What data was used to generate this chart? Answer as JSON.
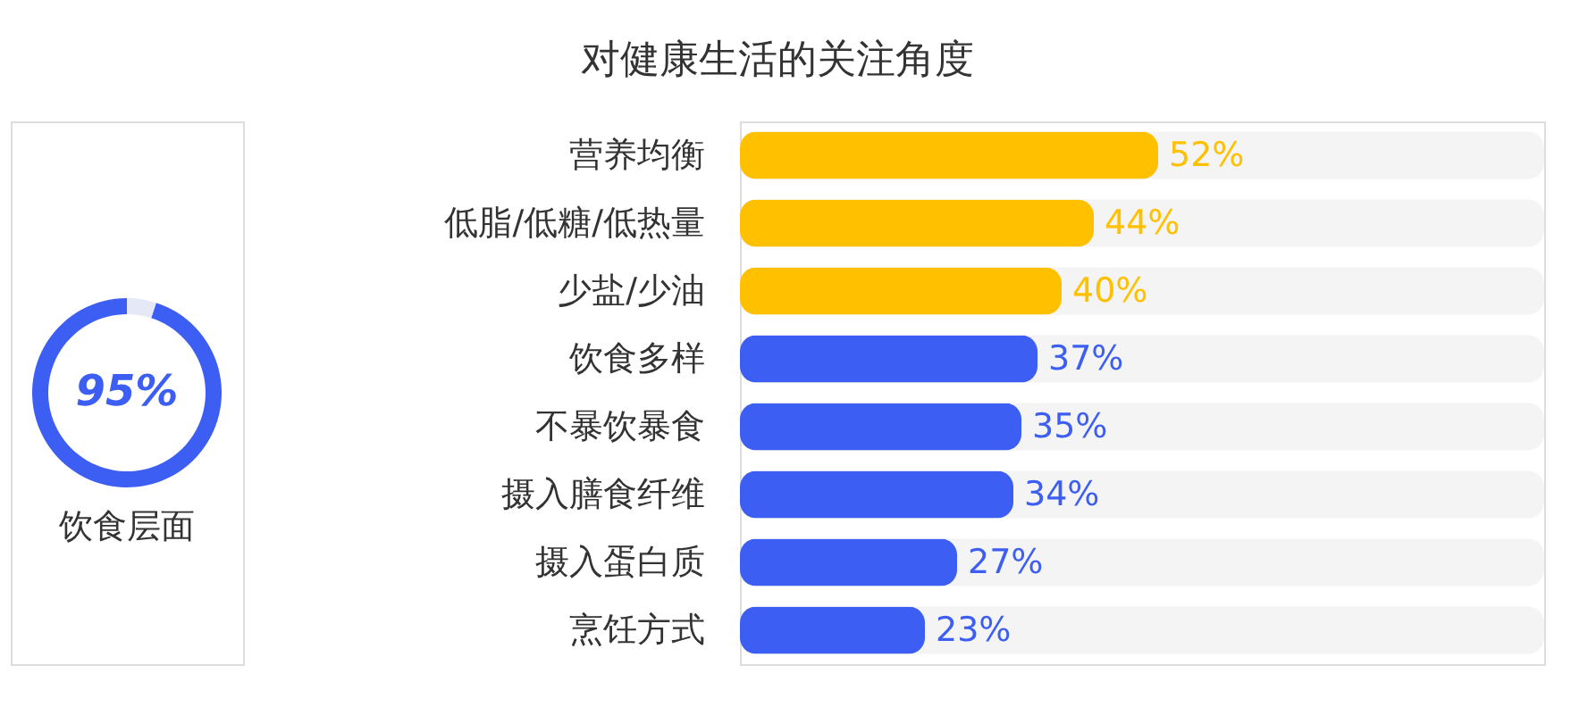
{
  "chart_data": [
    {
      "type": "donut",
      "categories": [
        "饮食层面",
        null
      ],
      "values": [
        95,
        5
      ],
      "colors": [
        "#3d5ef2",
        "#e4e8f7"
      ],
      "value_labels": [
        "95%",
        null
      ]
    },
    {
      "type": "bar",
      "orientation": "horizontal",
      "title": "对健康生活的关注角度",
      "categories": [
        "营养均衡",
        "低脂/低糖/低热量",
        "少盐/少油",
        "饮食多样",
        "不暴饮暴食",
        "摄入膳食纤维",
        "摄入蛋白质",
        "烹饪方式"
      ],
      "values": [
        52,
        44,
        40,
        37,
        35,
        34,
        27,
        23
      ],
      "colors": [
        "#ffc000",
        "#ffc000",
        "#ffc000",
        "#3d5ef2",
        "#3d5ef2",
        "#3d5ef2",
        "#3d5ef2",
        "#3d5ef2"
      ],
      "value_labels": [
        "52%",
        "44%",
        "40%",
        "37%",
        "35%",
        "34%",
        "27%",
        "23%"
      ],
      "xlim": [
        0,
        100
      ],
      "tick_labels": "y",
      "bands": [
        {
          "axis": "x",
          "from": 0,
          "to": 100,
          "color": "#f4f4f4"
        }
      ]
    }
  ]
}
